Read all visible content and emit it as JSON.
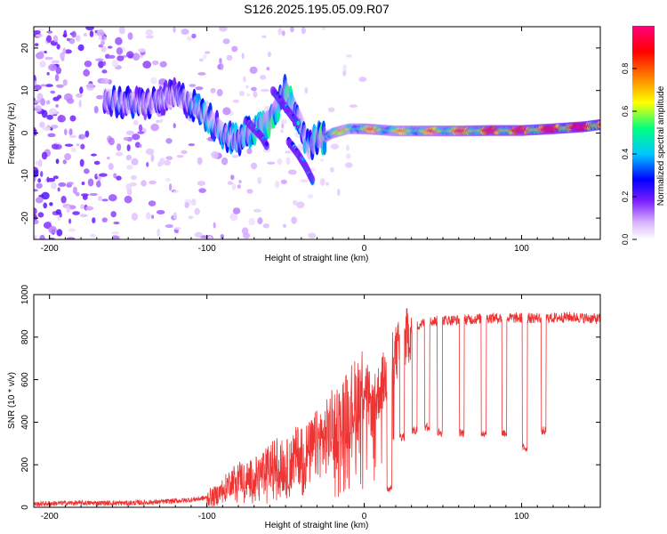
{
  "title": "S126.2025.195.05.09.R07",
  "chart_data": [
    {
      "type": "heatmap",
      "xlabel": "Height of straight line (km)",
      "ylabel": "Frequency (Hz)",
      "xlim": [
        -210,
        150
      ],
      "ylim": [
        -25,
        25
      ],
      "xticks": [
        -200,
        -100,
        0,
        100
      ],
      "yticks": [
        -20,
        -10,
        0,
        10,
        20
      ],
      "colorbar": {
        "label": "Normalized spectral amplitude",
        "range": [
          0,
          1
        ],
        "ticks": [
          "0.0",
          "0.2",
          "0.4",
          "0.6",
          "0.8"
        ],
        "colors": [
          "#ffffff",
          "#d9b3ff",
          "#7a1fff",
          "#0000ff",
          "#00c8ff",
          "#00ff80",
          "#ffff00",
          "#ff8000",
          "#ff0000",
          "#ff0080"
        ]
      },
      "ridge": {
        "x": [
          -165,
          -150,
          -135,
          -120,
          -110,
          -100,
          -90,
          -80,
          -70,
          -60,
          -50,
          -40,
          -35,
          -30,
          -25,
          -20,
          -10,
          0,
          20,
          40,
          60,
          80,
          100,
          120,
          140,
          150
        ],
        "y": [
          8,
          7,
          7,
          9,
          7,
          4,
          0,
          -2,
          1,
          3,
          10,
          2,
          -4,
          -1,
          -1,
          0,
          1,
          1,
          0.5,
          0.5,
          0.5,
          0.6,
          0.6,
          1,
          1.5,
          2
        ],
        "amplitude": [
          0.3,
          0.35,
          0.3,
          0.3,
          0.35,
          0.45,
          0.4,
          0.45,
          0.5,
          0.55,
          0.55,
          0.45,
          0.4,
          0.55,
          0.6,
          0.6,
          0.55,
          0.65,
          0.6,
          0.65,
          0.7,
          0.8,
          0.8,
          0.85,
          0.9,
          0.9
        ]
      },
      "branches": [
        {
          "x": [
            -75,
            -70,
            -65,
            -62
          ],
          "y": [
            3,
            1,
            -1,
            -3
          ]
        },
        {
          "x": [
            -58,
            -52,
            -46,
            -42
          ],
          "y": [
            10,
            7,
            4,
            2
          ]
        },
        {
          "x": [
            -48,
            -42,
            -37,
            -33
          ],
          "y": [
            -2,
            -5,
            -8,
            -11
          ]
        }
      ]
    },
    {
      "type": "line",
      "xlabel": "Height of straight line (km)",
      "ylabel": "SNR (10 * v/v)",
      "xlim": [
        -210,
        150
      ],
      "ylim": [
        0,
        1000
      ],
      "xticks": [
        -200,
        -100,
        0,
        100
      ],
      "yticks": [
        0,
        200,
        400,
        600,
        800,
        1000
      ],
      "color": "#ee3333",
      "series": [
        {
          "x": [
            -210,
            -190,
            -170,
            -150,
            -130,
            -110,
            -100,
            -95,
            -90,
            -85,
            -80,
            -75,
            -70,
            -65,
            -60,
            -55,
            -50,
            -45,
            -40,
            -35,
            -30,
            -25,
            -20,
            -15,
            -10,
            -5,
            0,
            5,
            10,
            15,
            20,
            25,
            30,
            35,
            40,
            50,
            60,
            70,
            80,
            90,
            100,
            110,
            120,
            130,
            140,
            150
          ],
          "y": [
            15,
            20,
            20,
            20,
            25,
            35,
            45,
            50,
            80,
            120,
            150,
            130,
            140,
            160,
            190,
            220,
            180,
            230,
            260,
            250,
            300,
            320,
            380,
            400,
            470,
            500,
            600,
            450,
            560,
            640,
            720,
            780,
            830,
            860,
            870,
            880,
            880,
            885,
            890,
            890,
            890,
            890,
            890,
            895,
            890,
            885
          ]
        }
      ],
      "dropouts": [
        {
          "x": 16,
          "min": 70
        },
        {
          "x": 24,
          "min": 310
        },
        {
          "x": 32,
          "min": 340
        },
        {
          "x": 40,
          "min": 360
        },
        {
          "x": 48,
          "min": 330
        },
        {
          "x": 62,
          "min": 330
        },
        {
          "x": 76,
          "min": 330
        },
        {
          "x": 89,
          "min": 330
        },
        {
          "x": 102,
          "min": 260
        },
        {
          "x": 114,
          "min": 340
        }
      ]
    }
  ]
}
